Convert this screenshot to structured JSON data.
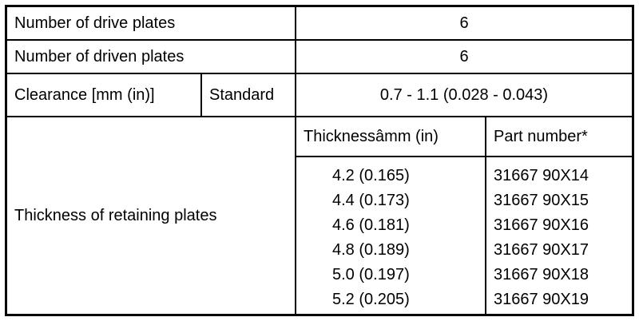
{
  "table": {
    "rows": [
      {
        "label": "Number of drive plates",
        "value": "6"
      },
      {
        "label": "Number of driven plates",
        "value": "6"
      },
      {
        "label": "Clearance [mm (in)]",
        "sub_label": "Standard",
        "value": "0.7 - 1.1 (0.028 - 0.043)"
      }
    ],
    "retaining": {
      "label": "Thickness of retaining plates",
      "col1_header": "Thicknessâmm (in)",
      "col2_header": "Part number*",
      "entries": [
        {
          "thickness": "4.2 (0.165)",
          "part": "31667 90X14"
        },
        {
          "thickness": "4.4 (0.173)",
          "part": "31667 90X15"
        },
        {
          "thickness": "4.6 (0.181)",
          "part": "31667 90X16"
        },
        {
          "thickness": "4.8 (0.189)",
          "part": "31667 90X17"
        },
        {
          "thickness": "5.0 (0.197)",
          "part": "31667 90X18"
        },
        {
          "thickness": "5.2 (0.205)",
          "part": "31667 90X19"
        }
      ]
    },
    "colors": {
      "border": "#000000",
      "background": "#ffffff",
      "text": "#000000"
    }
  }
}
